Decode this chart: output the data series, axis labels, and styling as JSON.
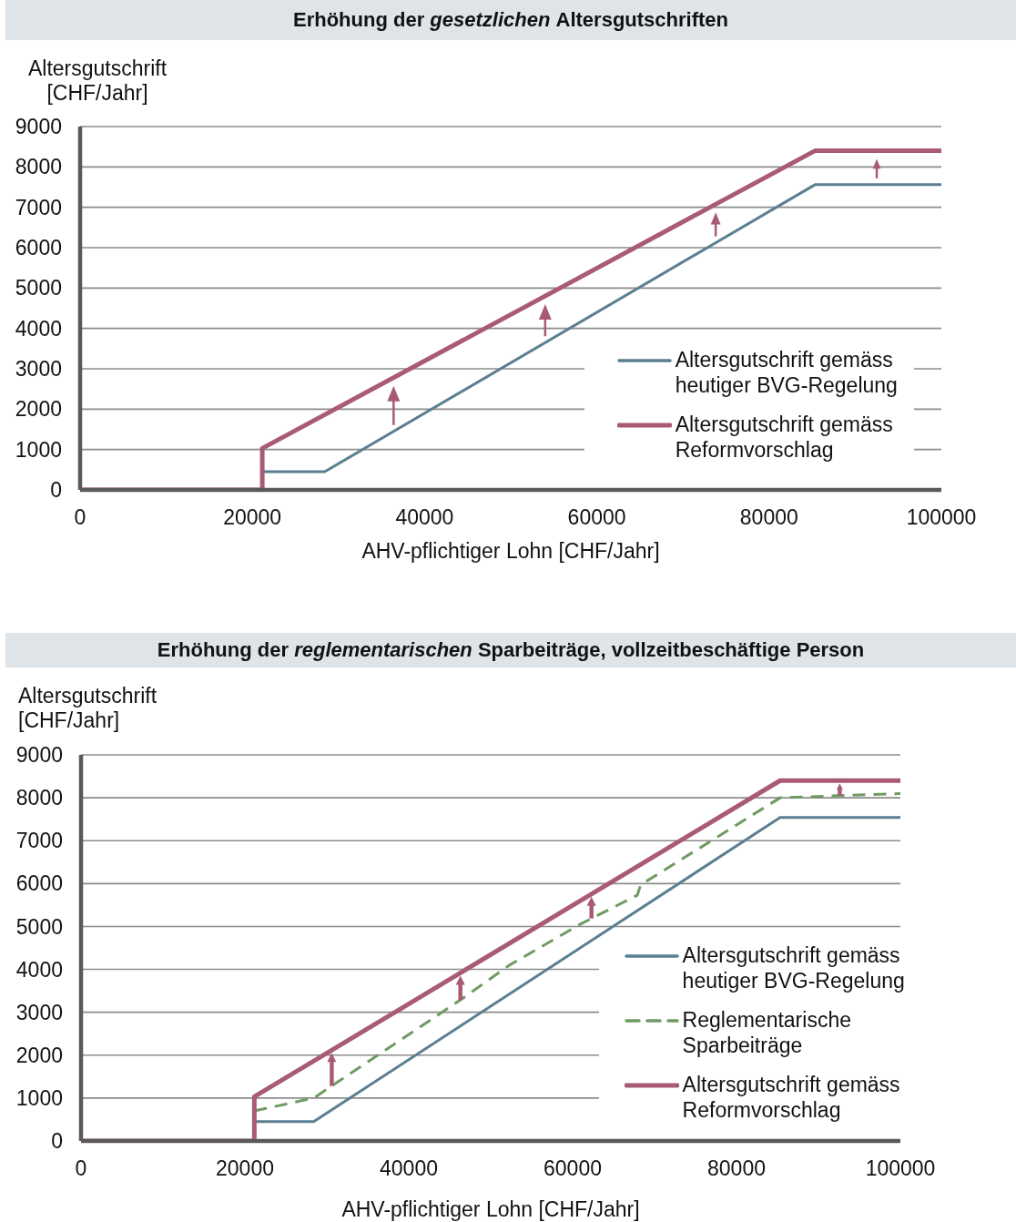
{
  "chart_data": [
    {
      "type": "line",
      "title": "Erhöhung der gesetzlichen Altersgutschriften",
      "xlabel": "AHV-pflichtiger Lohn [CHF/Jahr]",
      "ylabel": "Altersgutschrift [CHF/Jahr]",
      "xlim": [
        0,
        100000
      ],
      "xticks": [
        0,
        20000,
        40000,
        60000,
        80000,
        100000
      ],
      "ylim": [
        0,
        9000
      ],
      "yticks": [
        0,
        1000,
        2000,
        3000,
        4000,
        5000,
        6000,
        7000,
        8000,
        9000
      ],
      "grid": "y",
      "legend": "bottom right",
      "series": [
        {
          "name": "Altersgutschrift gemäss heutiger BVG-Regelung",
          "color": "#5b7f92",
          "x": [
            21150,
            28400,
            85320,
            100000
          ],
          "values": [
            450,
            450,
            7560,
            7560
          ]
        },
        {
          "name": "Altersgutschrift gemäss Reformvorschlag",
          "color": "#a95b74",
          "x": [
            0,
            21150,
            21150,
            85320,
            100000
          ],
          "values": [
            0,
            0,
            1030,
            8400,
            8400
          ]
        }
      ]
    },
    {
      "type": "line",
      "title": "Erhöhung der reglementarischen Sparbeiträge, vollzeitbeschäftige Person",
      "xlabel": "AHV-pflichtiger Lohn [CHF/Jahr]",
      "ylabel": "Altersgutschrift [CHF/Jahr]",
      "xlim": [
        0,
        100000
      ],
      "xticks": [
        0,
        20000,
        40000,
        60000,
        80000,
        100000
      ],
      "ylim": [
        0,
        9000
      ],
      "yticks": [
        0,
        1000,
        2000,
        3000,
        4000,
        5000,
        6000,
        7000,
        8000,
        9000
      ],
      "grid": "y",
      "legend": "bottom right",
      "series": [
        {
          "name": "Altersgutschrift gemäss heutiger BVG-Regelung",
          "color": "#5b7f92",
          "x": [
            21150,
            28400,
            85320,
            100000
          ],
          "values": [
            450,
            450,
            7540,
            7540
          ]
        },
        {
          "name": "Reglementarische Sparbeiträge",
          "color": "#6f9a62",
          "line_style": "dashed",
          "x": [
            21150,
            28400,
            46400,
            52300,
            60900,
            67900,
            68300,
            85320,
            100000
          ],
          "values": [
            700,
            1000,
            3300,
            4100,
            5050,
            5730,
            5970,
            8000,
            8100
          ]
        },
        {
          "name": "Altersgutschrift gemäss Reformvorschlag",
          "color": "#a95b74",
          "x": [
            0,
            21150,
            21150,
            85320,
            100000
          ],
          "values": [
            0,
            0,
            1030,
            8400,
            8400
          ]
        }
      ]
    }
  ]
}
